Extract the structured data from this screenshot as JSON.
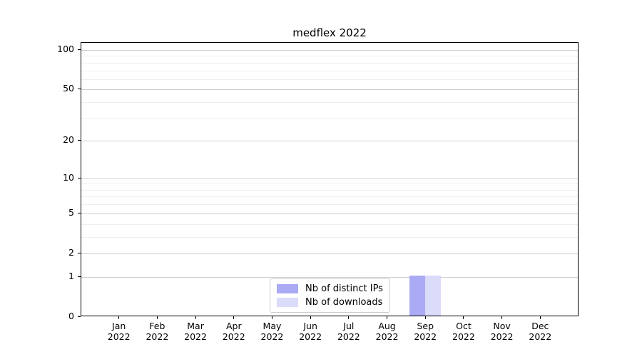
{
  "figure": {
    "title": "medflex 2022",
    "background": "#ffffff"
  },
  "chart_data": {
    "type": "bar",
    "title": "medflex 2022",
    "categories": [
      "Jan 2022",
      "Feb 2022",
      "Mar 2022",
      "Apr 2022",
      "May 2022",
      "Jun 2022",
      "Jul 2022",
      "Aug 2022",
      "Sep 2022",
      "Oct 2022",
      "Nov 2022",
      "Dec 2022"
    ],
    "series": [
      {
        "name": "Nb of distinct IPs",
        "color": "#aaaaf5",
        "values": [
          0,
          0,
          0,
          0,
          0,
          0,
          0,
          0,
          1,
          0,
          0,
          0
        ]
      },
      {
        "name": "Nb of downloads",
        "color": "#dbdbfa",
        "values": [
          0,
          0,
          0,
          0,
          0,
          0,
          0,
          0,
          1,
          0,
          0,
          0
        ]
      }
    ],
    "xlabel": "",
    "ylabel": "",
    "yscale": "log1p",
    "ylim": [
      0,
      113
    ],
    "yticks": [
      0,
      1,
      2,
      5,
      10,
      20,
      50,
      100
    ],
    "minor_yticks": [
      3,
      4,
      6,
      7,
      8,
      9,
      30,
      40,
      60,
      70,
      80,
      90
    ],
    "grid": true,
    "legend_position": "lower-center-inside"
  },
  "colors": {
    "major_grid": "#cfcfcf",
    "minor_grid": "#efefef",
    "axis": "#000000",
    "text": "#000000",
    "legend_border": "#cccccc"
  }
}
